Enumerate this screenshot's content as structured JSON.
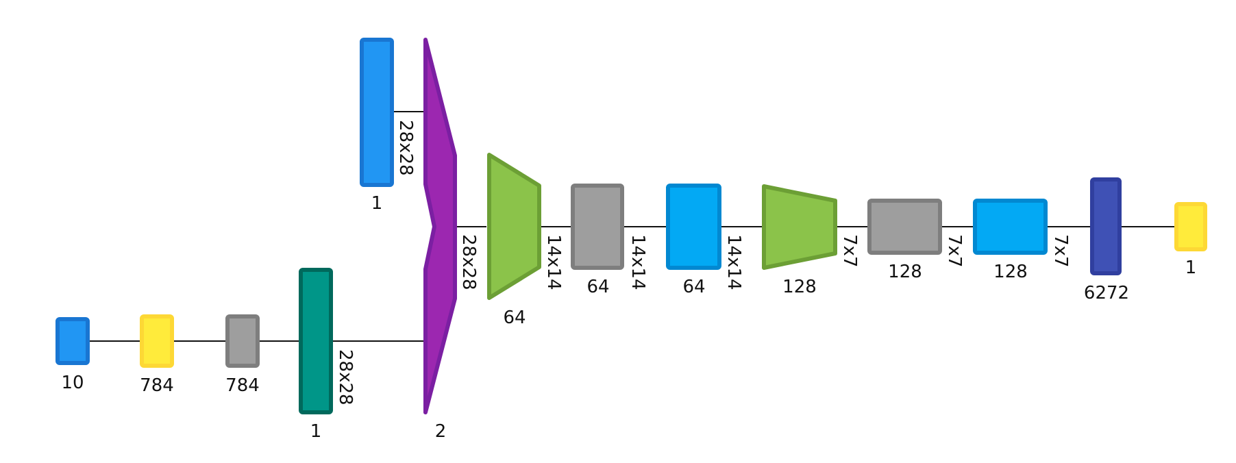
{
  "colors": {
    "blue_fill": "#2196F3",
    "blue_stroke": "#1976D2",
    "yellow_fill": "#FFEB3B",
    "yellow_stroke": "#FDD835",
    "gray_fill": "#9E9E9E",
    "gray_stroke": "#7E7E7E",
    "teal_fill": "#009688",
    "teal_stroke": "#00695C",
    "purple_fill": "#9C27B0",
    "purple_stroke": "#7B1FA2",
    "green_fill": "#8BC34A",
    "green_stroke": "#6C9F35",
    "lightblue_fill": "#03A9F4",
    "lightblue_stroke": "#0288D1",
    "indigo_fill": "#3F51B5",
    "indigo_stroke": "#303F9F"
  },
  "layers": [
    {
      "id": "dense-in",
      "label": "10",
      "color": "blue"
    },
    {
      "id": "dense-784",
      "label": "784",
      "color": "yellow"
    },
    {
      "id": "reshape-784",
      "label": "784",
      "color": "gray"
    },
    {
      "id": "reshape-28",
      "label": "1",
      "color": "teal",
      "dims": "28x28"
    },
    {
      "id": "image-input",
      "label": "1",
      "color": "blue",
      "dims": "28x28"
    },
    {
      "id": "concat",
      "label": "2",
      "color": "purple",
      "dims": "28x28"
    },
    {
      "id": "conv1",
      "label": "64",
      "color": "green",
      "dims": "14x14"
    },
    {
      "id": "act1",
      "label": "64",
      "color": "gray",
      "dims": "14x14"
    },
    {
      "id": "drop1",
      "label": "64",
      "color": "lightblue",
      "dims": "14x14"
    },
    {
      "id": "conv2",
      "label": "128",
      "color": "green",
      "dims": "7x7"
    },
    {
      "id": "act2",
      "label": "128",
      "color": "gray",
      "dims": "7x7"
    },
    {
      "id": "drop2",
      "label": "128",
      "color": "lightblue",
      "dims": "7x7"
    },
    {
      "id": "flatten",
      "label": "6272",
      "color": "indigo"
    },
    {
      "id": "output",
      "label": "1",
      "color": "yellow"
    }
  ]
}
